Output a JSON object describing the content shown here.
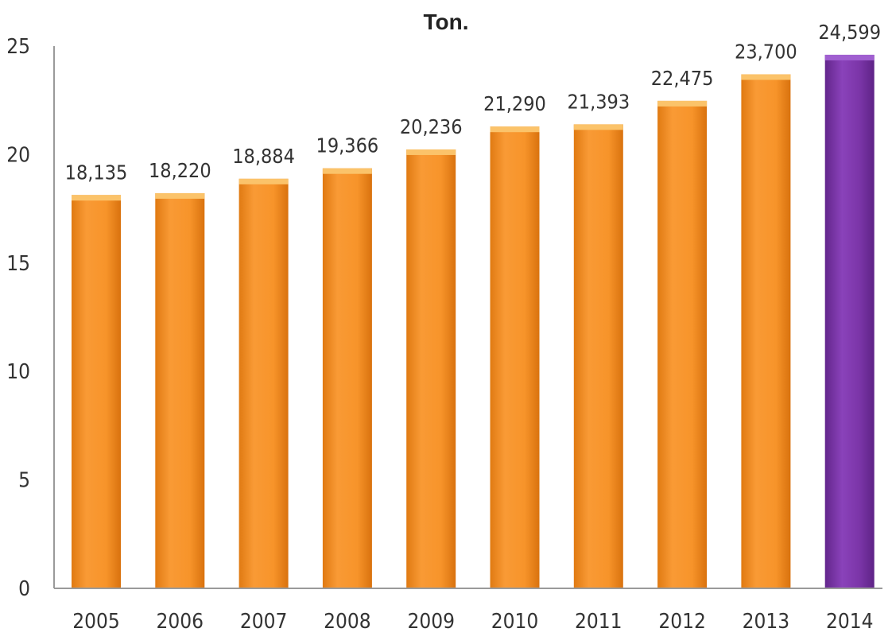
{
  "chart_data": {
    "type": "bar",
    "title": "Ton.",
    "xlabel": "",
    "ylabel": "",
    "categories": [
      "2005",
      "2006",
      "2007",
      "2008",
      "2009",
      "2010",
      "2011",
      "2012",
      "2013",
      "2014"
    ],
    "values": [
      18135,
      18220,
      18884,
      19366,
      20236,
      21290,
      21393,
      22475,
      23700,
      24599
    ],
    "data_labels": [
      "18,135",
      "18,220",
      "18,884",
      "19,366",
      "20,236",
      "21,290",
      "21,393",
      "22,475",
      "23,700",
      "24,599"
    ],
    "y_ticks": [
      "0",
      "5",
      "10",
      "15",
      "20",
      "25"
    ],
    "ylim": [
      0,
      25000
    ],
    "grid": false,
    "legend": "none",
    "colors": {
      "bar": "#F7942A",
      "bar_highlight": "#7B35A8",
      "axis": "#9a9a9a",
      "text": "#333333"
    }
  }
}
